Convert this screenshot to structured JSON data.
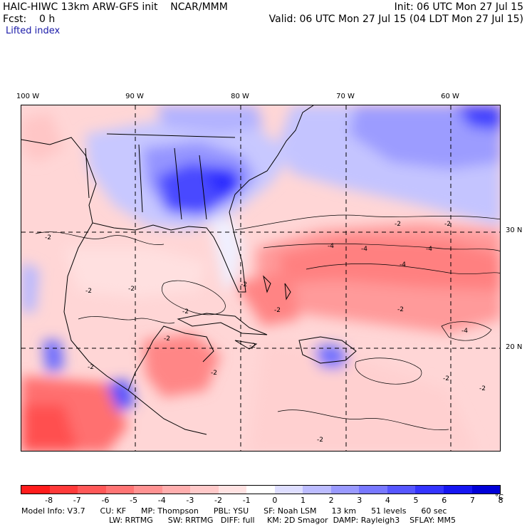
{
  "header": {
    "line1_left": "HAIC-HIWC 13km ARW-GFS init    NCAR/MMM",
    "line2_left": "Fcst:    0 h",
    "line1_right": "Init: 06 UTC Mon 27 Jul 15",
    "line2_right": "Valid: 06 UTC Mon 27 Jul 15 (04 LDT Mon 27 Jul 15)",
    "field_name": "Lifted index"
  },
  "axes": {
    "lon_labels": [
      "100 W",
      "90 W",
      "80 W",
      "70 W",
      "60 W"
    ],
    "lat_labels": [
      "30 N",
      "20 N"
    ]
  },
  "contour_labels": [
    "-2",
    "-2",
    "-2",
    "-2",
    "-2",
    "-2",
    "-2",
    "-2",
    "-2",
    "-2",
    "-2",
    "-2",
    "-2",
    "-4",
    "-4",
    "-4",
    "-4",
    "-4",
    "-2",
    "-2",
    "-2"
  ],
  "colorbar": {
    "unit": "°C",
    "tick_labels": [
      "-8",
      "-7",
      "-6",
      "-5",
      "-4",
      "-3",
      "-2",
      "-1",
      "0",
      "1",
      "2",
      "3",
      "4",
      "5",
      "6",
      "7",
      "8"
    ],
    "colors": [
      "#ff1c1c",
      "#ff3a3a",
      "#ff5858",
      "#ff7474",
      "#ff9292",
      "#ffaeae",
      "#ffc9c9",
      "#ffe2e2",
      "#ffffff",
      "#dedeff",
      "#bcbcff",
      "#9a9aff",
      "#7878ff",
      "#5656ff",
      "#3434ff",
      "#1616f2",
      "#0000d8"
    ]
  },
  "footer": {
    "line1": "Model Info: V3.7      CU: KF      MP: Thompson      PBL: YSU      SF: Noah LSM      13 km      51 levels      60 sec",
    "line2": "LW: RRTMG      SW: RRTMG   DIFF: full     KM: 2D Smagor  DAMP: Rayleigh3    SFLAY: MM5"
  }
}
